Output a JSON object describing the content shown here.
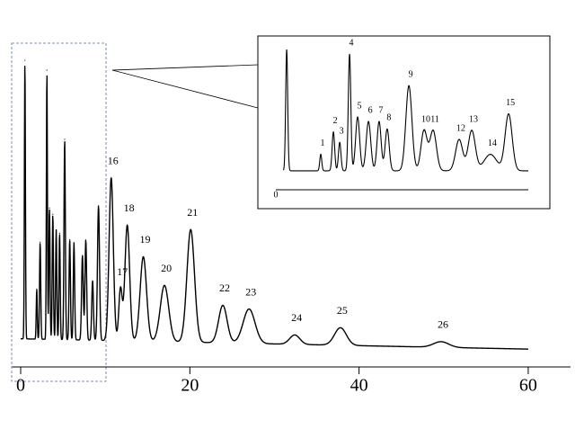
{
  "chart_data": [
    {
      "type": "chromatogram",
      "xlim": [
        -1,
        65
      ],
      "xticks": [
        0,
        20,
        40,
        60
      ],
      "ylim": [
        0,
        100
      ],
      "color": "#000000",
      "baseline": {
        "x": [
          0,
          60
        ],
        "values": [
          9,
          5.7
        ]
      },
      "peaks": {
        "labels": [
          null,
          null,
          null,
          null,
          null,
          null,
          null,
          null,
          null,
          null,
          null,
          null,
          null,
          null,
          null,
          "16",
          "17",
          "18",
          "19",
          "20",
          "21",
          "22",
          "23",
          "24",
          "25",
          "26"
        ],
        "x": [
          0.5,
          1.9,
          2.3,
          3.1,
          3.4,
          3.8,
          4.2,
          4.6,
          5.2,
          5.8,
          6.3,
          7.3,
          7.7,
          8.5,
          9.2,
          10.7,
          11.8,
          12.6,
          14.5,
          17.0,
          20.1,
          23.9,
          27.0,
          32.4,
          37.8,
          49.7
        ],
        "values": [
          89,
          16,
          31,
          86,
          42,
          40,
          35,
          34,
          64,
          32,
          31,
          27,
          32,
          19,
          43,
          52,
          16.6,
          37,
          27,
          18,
          36,
          12,
          11,
          3,
          5.6,
          1.8
        ],
        "widths": [
          0.06,
          0.06,
          0.07,
          0.06,
          0.07,
          0.07,
          0.07,
          0.07,
          0.08,
          0.08,
          0.08,
          0.1,
          0.1,
          0.1,
          0.12,
          0.25,
          0.2,
          0.28,
          0.38,
          0.5,
          0.45,
          0.5,
          0.7,
          0.6,
          0.7,
          0.9
        ]
      }
    },
    {
      "type": "chromatogram",
      "xlim": [
        0,
        10
      ],
      "xticks": [
        0
      ],
      "ylim": [
        0,
        100
      ],
      "color": "#000000",
      "baseline": {
        "x": [
          0.3,
          10
        ],
        "values": [
          12.7,
          12.7
        ]
      },
      "peaks": {
        "labels": [
          null,
          "1",
          "2",
          "3",
          "4",
          "5",
          "6",
          "7",
          "8",
          "9",
          "10",
          "11",
          "12",
          "13",
          "14",
          "15"
        ],
        "x": [
          0.43,
          1.78,
          2.28,
          2.53,
          2.92,
          3.24,
          3.67,
          4.09,
          4.41,
          5.27,
          5.87,
          6.23,
          7.26,
          7.76,
          8.5,
          9.22
        ],
        "values": [
          81,
          11,
          26,
          19,
          78,
          36,
          33,
          33,
          28,
          57,
          27,
          27,
          21,
          27,
          11,
          38
        ],
        "widths": [
          0.04,
          0.04,
          0.05,
          0.05,
          0.05,
          0.08,
          0.09,
          0.08,
          0.08,
          0.12,
          0.12,
          0.13,
          0.14,
          0.14,
          0.25,
          0.14
        ]
      }
    }
  ]
}
